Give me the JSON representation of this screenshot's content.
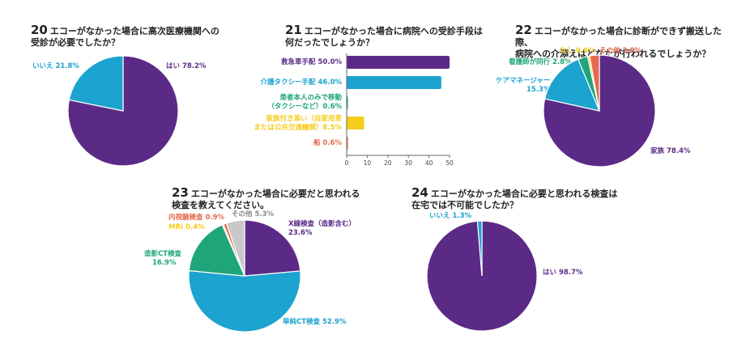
{
  "colors": {
    "purple": "#5b2a86",
    "blue": "#1ca3cf",
    "green": "#1fa57a",
    "yellow": "#f5cc1c",
    "red": "#e56a4f",
    "gray": "#c8c8c8"
  },
  "chart_data": [
    {
      "id": "q20",
      "type": "pie",
      "number": "20",
      "title_lines": [
        "エコーがなかった場合に高次医療機関への",
        "受診が必要でしたか？"
      ],
      "slices": [
        {
          "label": "はい 78.2%",
          "value": 78.2,
          "color": "#5b2a86"
        },
        {
          "label": "いいえ 21.8%",
          "value": 21.8,
          "color": "#1ca3cf"
        }
      ]
    },
    {
      "id": "q21",
      "type": "bar",
      "number": "21",
      "title_lines": [
        "エコーがなかった場合に病院への受診手段は",
        "何だったでしょうか？"
      ],
      "orientation": "horizontal",
      "xlim": [
        0,
        50
      ],
      "xticks": [
        "0",
        "10",
        "20",
        "30",
        "40",
        "50"
      ],
      "bars": [
        {
          "label_lines": [
            "救急車手配 50.0%"
          ],
          "value": 50.0,
          "color": "#5b2a86"
        },
        {
          "label_lines": [
            "介護タクシー手配 46.0%"
          ],
          "value": 46.0,
          "color": "#1ca3cf"
        },
        {
          "label_lines": [
            "患者本人のみで移動",
            "（タクシーなど）0.6%"
          ],
          "value": 0.6,
          "color": "#1fa57a"
        },
        {
          "label_lines": [
            "家族付き添い（自家用車",
            "または公共交通機関）8.5%"
          ],
          "value": 8.5,
          "color": "#f5cc1c"
        },
        {
          "label_lines": [
            "船 0.6%"
          ],
          "value": 0.6,
          "color": "#e56a4f"
        }
      ]
    },
    {
      "id": "q22",
      "type": "pie",
      "number": "22",
      "title_lines": [
        "エコーがなかった場合に診断ができず搬送した際、",
        "病院への介添えはどなたが行われるでしょうか？"
      ],
      "slices": [
        {
          "label": "家族 78.4%",
          "value": 78.4,
          "color": "#5b2a86"
        },
        {
          "label": "ケアマネージャー 15.3%",
          "value": 15.3,
          "color": "#1ca3cf"
        },
        {
          "label": "看護師が同行 2.8%",
          "value": 2.8,
          "color": "#1fa57a"
        },
        {
          "label": "なし 0.6%",
          "value": 0.6,
          "color": "#f5cc1c"
        },
        {
          "label": "その他 2.8%",
          "value": 2.8,
          "color": "#e56a4f"
        }
      ]
    },
    {
      "id": "q23",
      "type": "pie",
      "number": "23",
      "title_lines": [
        "エコーがなかった場合に必要だと思われる",
        "検査を教えてください。"
      ],
      "slices": [
        {
          "label": "X線検査（造影含む） 23.6%",
          "value": 23.6,
          "color": "#5b2a86"
        },
        {
          "label": "単純CT検査 52.9%",
          "value": 52.9,
          "color": "#1ca3cf"
        },
        {
          "label": "造影CT検査 16.9%",
          "value": 16.9,
          "color": "#1fa57a"
        },
        {
          "label": "MRI 0.4%",
          "value": 0.4,
          "color": "#f5cc1c"
        },
        {
          "label": "内視鏡検査 0.9%",
          "value": 0.9,
          "color": "#e56a4f"
        },
        {
          "label": "その他 5.3%",
          "value": 5.3,
          "color": "#c8c8c8"
        }
      ]
    },
    {
      "id": "q24",
      "type": "pie",
      "number": "24",
      "title_lines": [
        "エコーがなかった場合に必要と思われる検査は",
        "在宅では不可能でしたか？"
      ],
      "slices": [
        {
          "label": "はい 98.7%",
          "value": 98.7,
          "color": "#5b2a86"
        },
        {
          "label": "いいえ 1.3%",
          "value": 1.3,
          "color": "#1ca3cf"
        }
      ]
    }
  ]
}
